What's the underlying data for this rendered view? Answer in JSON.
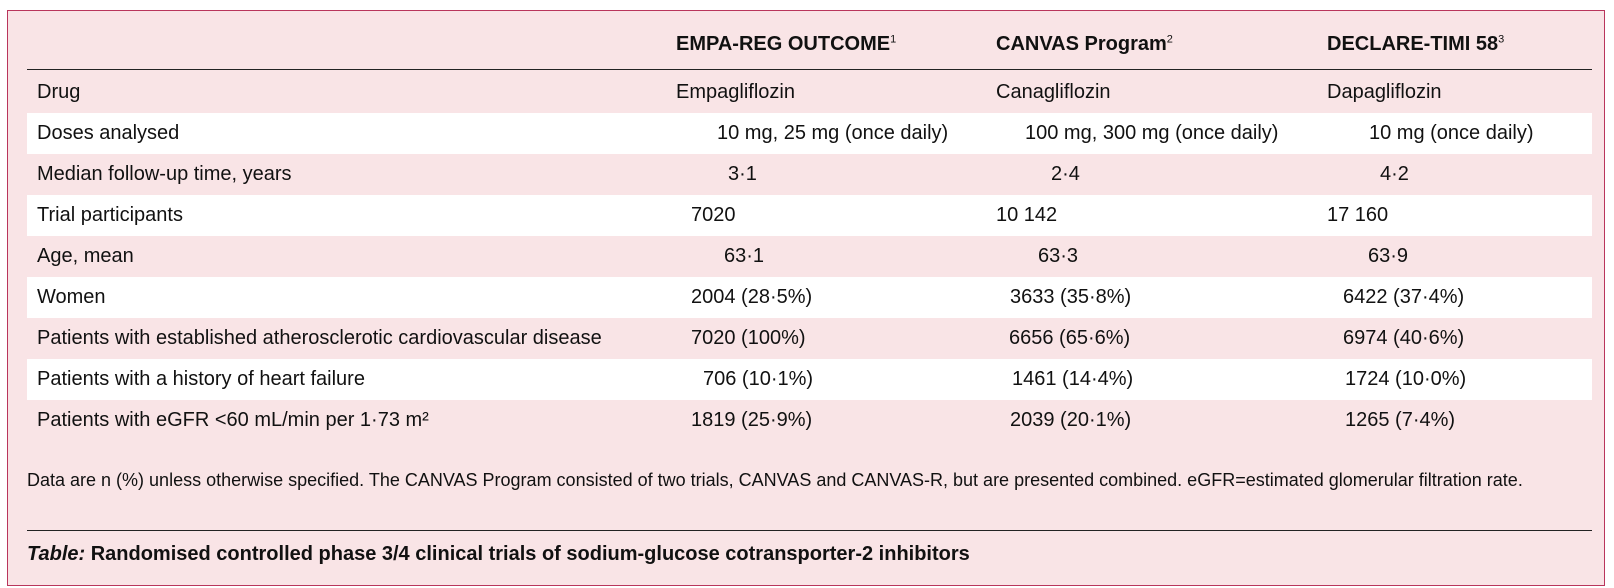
{
  "table": {
    "columns": [
      {
        "name": "EMPA-REG OUTCOME",
        "ref": "1"
      },
      {
        "name": "CANVAS Program",
        "ref": "2"
      },
      {
        "name": "DECLARE-TIMI 58",
        "ref": "3"
      }
    ],
    "rows": [
      {
        "label": "Drug",
        "values": [
          "Empagliflozin",
          "Canagliflozin",
          "Dapagliflozin"
        ]
      },
      {
        "label": "Doses analysed",
        "values": [
          "10 mg, 25 mg (once daily)",
          "100 mg, 300 mg (once daily)",
          "10 mg (once daily)"
        ]
      },
      {
        "label": "Median follow-up time, years",
        "values": [
          "3·1",
          "2·4",
          "4·2"
        ]
      },
      {
        "label": "Trial participants",
        "values": [
          "7020",
          "10 142",
          "17 160"
        ]
      },
      {
        "label": "Age, mean",
        "values": [
          "63·1",
          "63·3",
          "63·9"
        ]
      },
      {
        "label": "Women",
        "values": [
          "2004 (28·5%)",
          "3633 (35·8%)",
          "6422 (37·4%)"
        ]
      },
      {
        "label": "Patients with established atherosclerotic cardiovascular disease",
        "values": [
          "7020 (100%)",
          "6656 (65·6%)",
          "6974 (40·6%)"
        ]
      },
      {
        "label": "Patients with a history of heart failure",
        "values": [
          "706 (10·1%)",
          "1461 (14·4%)",
          "1724 (10·0%)"
        ]
      },
      {
        "label": "Patients with eGFR <60 mL/min per 1·73 m²",
        "values": [
          "1819 (25·9%)",
          "2039 (20·1%)",
          "1265 (7·4%)"
        ]
      }
    ]
  },
  "footnote": "Data are n (%) unless otherwise specified. The CANVAS Program consisted of two trials, CANVAS and CANVAS-R, but are presented combined. eGFR=estimated glomerular filtration rate.",
  "caption": {
    "prefix": "Table:",
    "text": " Randomised controlled phase 3/4 clinical trials of sodium-glucose cotransporter-2 inhibitors"
  }
}
